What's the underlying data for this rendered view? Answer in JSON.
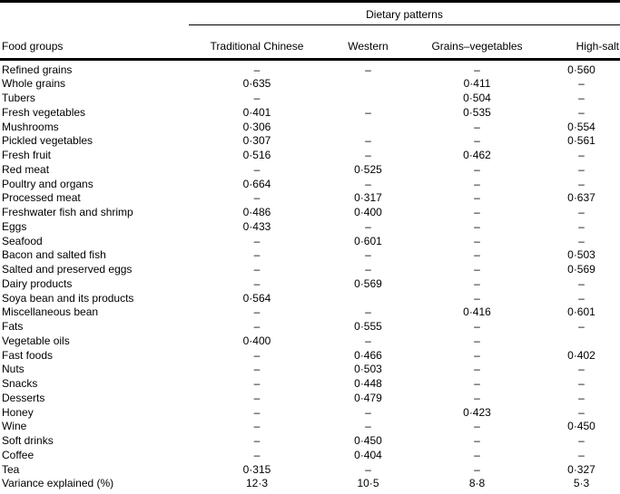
{
  "table": {
    "spanner": "Dietary patterns",
    "header": {
      "food_groups": "Food groups",
      "patterns": [
        "Traditional Chinese",
        "Western",
        "Grains–vegetables",
        "High-salt"
      ]
    },
    "rows": [
      {
        "label": "Refined grains",
        "values": [
          "–",
          "–",
          "–",
          "0·560"
        ]
      },
      {
        "label": "Whole grains",
        "values": [
          "0·635",
          "",
          "0·411",
          "–"
        ]
      },
      {
        "label": "Tubers",
        "values": [
          "–",
          "",
          "0·504",
          "–"
        ]
      },
      {
        "label": "Fresh vegetables",
        "values": [
          "0·401",
          "–",
          "0·535",
          "–"
        ]
      },
      {
        "label": "Mushrooms",
        "values": [
          "0·306",
          "",
          "–",
          "0·554"
        ]
      },
      {
        "label": "Pickled vegetables",
        "values": [
          "0·307",
          "–",
          "–",
          "0·561"
        ]
      },
      {
        "label": "Fresh fruit",
        "values": [
          "0·516",
          "–",
          "0·462",
          "–"
        ]
      },
      {
        "label": "Red meat",
        "values": [
          "–",
          "0·525",
          "–",
          "–"
        ]
      },
      {
        "label": "Poultry and organs",
        "values": [
          "0·664",
          "–",
          "–",
          "–"
        ]
      },
      {
        "label": "Processed meat",
        "values": [
          "–",
          "0·317",
          "–",
          "0·637"
        ]
      },
      {
        "label": "Freshwater fish and shrimp",
        "values": [
          "0·486",
          "0·400",
          "–",
          "–"
        ]
      },
      {
        "label": "Eggs",
        "values": [
          "0·433",
          "–",
          "–",
          "–"
        ]
      },
      {
        "label": "Seafood",
        "values": [
          "–",
          "0·601",
          "–",
          "–"
        ]
      },
      {
        "label": "Bacon and salted fish",
        "values": [
          "–",
          "–",
          "–",
          "0·503"
        ]
      },
      {
        "label": "Salted and preserved eggs",
        "values": [
          "–",
          "–",
          "–",
          "0·569"
        ]
      },
      {
        "label": "Dairy products",
        "values": [
          "–",
          "0·569",
          "–",
          "–"
        ]
      },
      {
        "label": "Soya bean and its products",
        "values": [
          "0·564",
          "",
          "–",
          "–"
        ]
      },
      {
        "label": "Miscellaneous bean",
        "values": [
          "–",
          "–",
          "0·416",
          "0·601"
        ]
      },
      {
        "label": "Fats",
        "values": [
          "–",
          "0·555",
          "–",
          "–"
        ]
      },
      {
        "label": "Vegetable oils",
        "values": [
          "0·400",
          "–",
          "–",
          ""
        ]
      },
      {
        "label": "Fast foods",
        "values": [
          "–",
          "0·466",
          "–",
          "0·402"
        ]
      },
      {
        "label": "Nuts",
        "values": [
          "–",
          "0·503",
          "–",
          "–"
        ]
      },
      {
        "label": "Snacks",
        "values": [
          "–",
          "0·448",
          "–",
          "–"
        ]
      },
      {
        "label": "Desserts",
        "values": [
          "–",
          "0·479",
          "–",
          "–"
        ]
      },
      {
        "label": "Honey",
        "values": [
          "–",
          "–",
          "0·423",
          "–"
        ]
      },
      {
        "label": "Wine",
        "values": [
          "–",
          "–",
          "–",
          "0·450"
        ]
      },
      {
        "label": "Soft drinks",
        "values": [
          "–",
          "0·450",
          "–",
          "–"
        ]
      },
      {
        "label": "Coffee",
        "values": [
          "–",
          "0·404",
          "–",
          "–"
        ]
      },
      {
        "label": "Tea",
        "values": [
          "0·315",
          "–",
          "–",
          "0·327"
        ]
      },
      {
        "label": "Variance explained (%)",
        "values": [
          "12·3",
          "10·5",
          "8·8",
          "5·3"
        ]
      }
    ]
  }
}
